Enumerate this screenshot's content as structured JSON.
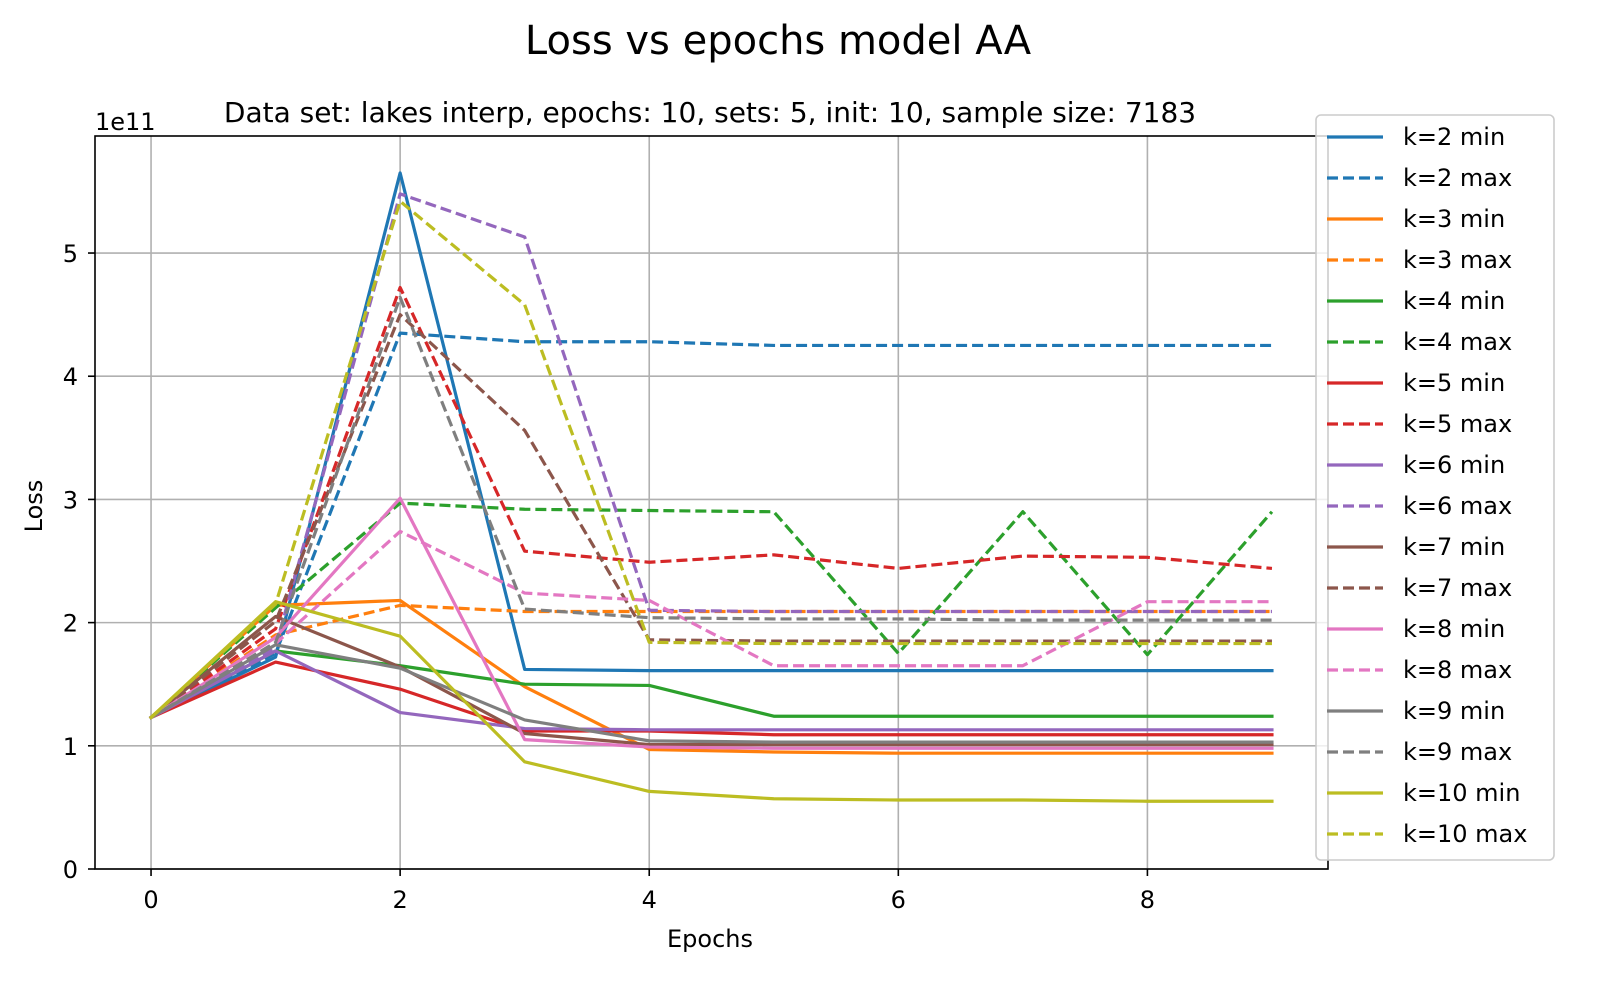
{
  "chart_data": {
    "type": "line",
    "title": "Loss vs epochs model AA",
    "subtitle": "Data set:  lakes interp, epochs: 10, sets: 5, init: 10, sample size: 7183",
    "xlabel": "Epochs",
    "ylabel": "Loss",
    "y_offset_label": "1e11",
    "xlim": [
      -0.45,
      9.45
    ],
    "ylim": [
      0,
      5.95
    ],
    "x_ticks": [
      0,
      2,
      4,
      6,
      8
    ],
    "y_ticks": [
      0,
      1,
      2,
      3,
      4,
      5
    ],
    "x_tick_labels": [
      "0",
      "2",
      "4",
      "6",
      "8"
    ],
    "y_tick_labels": [
      "0",
      "1",
      "2",
      "3",
      "4",
      "5"
    ],
    "grid": true,
    "legend_position": "right, outside plot area",
    "x": [
      0,
      1,
      2,
      3,
      4,
      5,
      6,
      7,
      8,
      9
    ],
    "series": [
      {
        "name": "k=2 min",
        "color": "#1f77b4",
        "style": "solid",
        "values": [
          1.23,
          1.72,
          5.65,
          1.62,
          1.61,
          1.61,
          1.61,
          1.61,
          1.61,
          1.61
        ]
      },
      {
        "name": "k=2 max",
        "color": "#1f77b4",
        "style": "dashed",
        "values": [
          1.23,
          1.75,
          4.35,
          4.28,
          4.28,
          4.25,
          4.25,
          4.25,
          4.25,
          4.25
        ]
      },
      {
        "name": "k=3 min",
        "color": "#ff7f0e",
        "style": "solid",
        "values": [
          1.23,
          2.14,
          2.18,
          1.48,
          0.97,
          0.95,
          0.94,
          0.94,
          0.94,
          0.94
        ]
      },
      {
        "name": "k=3 max",
        "color": "#ff7f0e",
        "style": "dashed",
        "values": [
          1.23,
          1.9,
          2.14,
          2.09,
          2.09,
          2.09,
          2.09,
          2.09,
          2.09,
          2.09
        ]
      },
      {
        "name": "k=4 min",
        "color": "#2ca02c",
        "style": "solid",
        "values": [
          1.23,
          1.77,
          1.65,
          1.5,
          1.49,
          1.24,
          1.24,
          1.24,
          1.24,
          1.24
        ]
      },
      {
        "name": "k=4 max",
        "color": "#2ca02c",
        "style": "dashed",
        "values": [
          1.23,
          2.12,
          2.97,
          2.92,
          2.91,
          2.9,
          1.75,
          2.9,
          1.74,
          2.9
        ]
      },
      {
        "name": "k=5 min",
        "color": "#d62728",
        "style": "solid",
        "values": [
          1.23,
          1.68,
          1.46,
          1.12,
          1.12,
          1.09,
          1.09,
          1.09,
          1.09,
          1.09
        ]
      },
      {
        "name": "k=5 max",
        "color": "#d62728",
        "style": "dashed",
        "values": [
          1.23,
          1.95,
          4.72,
          2.58,
          2.49,
          2.55,
          2.44,
          2.54,
          2.53,
          2.44
        ]
      },
      {
        "name": "k=6 min",
        "color": "#9467bd",
        "style": "solid",
        "values": [
          1.23,
          1.77,
          1.27,
          1.14,
          1.13,
          1.13,
          1.13,
          1.13,
          1.13,
          1.13
        ]
      },
      {
        "name": "k=6 max",
        "color": "#9467bd",
        "style": "dashed",
        "values": [
          1.23,
          1.8,
          5.48,
          5.13,
          2.1,
          2.09,
          2.09,
          2.09,
          2.09,
          2.09
        ]
      },
      {
        "name": "k=7 min",
        "color": "#8c564b",
        "style": "solid",
        "values": [
          1.23,
          2.05,
          1.64,
          1.1,
          1.01,
          1.01,
          1.01,
          1.01,
          1.01,
          1.01
        ]
      },
      {
        "name": "k=7 max",
        "color": "#8c564b",
        "style": "dashed",
        "values": [
          1.23,
          2.01,
          4.5,
          3.56,
          1.86,
          1.85,
          1.85,
          1.85,
          1.85,
          1.85
        ]
      },
      {
        "name": "k=8 min",
        "color": "#e377c2",
        "style": "solid",
        "values": [
          1.23,
          1.88,
          3.01,
          1.05,
          0.99,
          0.98,
          0.98,
          0.98,
          0.98,
          0.98
        ]
      },
      {
        "name": "k=8 max",
        "color": "#e377c2",
        "style": "dashed",
        "values": [
          1.23,
          1.83,
          2.74,
          2.24,
          2.18,
          1.65,
          1.65,
          1.65,
          2.17,
          2.17
        ]
      },
      {
        "name": "k=9 min",
        "color": "#7f7f7f",
        "style": "solid",
        "values": [
          1.23,
          1.82,
          1.63,
          1.21,
          1.04,
          1.03,
          1.03,
          1.03,
          1.03,
          1.03
        ]
      },
      {
        "name": "k=9 max",
        "color": "#7f7f7f",
        "style": "dashed",
        "values": [
          1.23,
          1.84,
          4.64,
          2.11,
          2.04,
          2.03,
          2.03,
          2.02,
          2.02,
          2.02
        ]
      },
      {
        "name": "k=10 min",
        "color": "#bcbd22",
        "style": "solid",
        "values": [
          1.23,
          2.17,
          1.89,
          0.87,
          0.63,
          0.57,
          0.56,
          0.56,
          0.55,
          0.55
        ]
      },
      {
        "name": "k=10 max",
        "color": "#bcbd22",
        "style": "dashed",
        "values": [
          1.23,
          2.15,
          5.42,
          4.58,
          1.84,
          1.83,
          1.83,
          1.83,
          1.83,
          1.83
        ]
      }
    ]
  }
}
